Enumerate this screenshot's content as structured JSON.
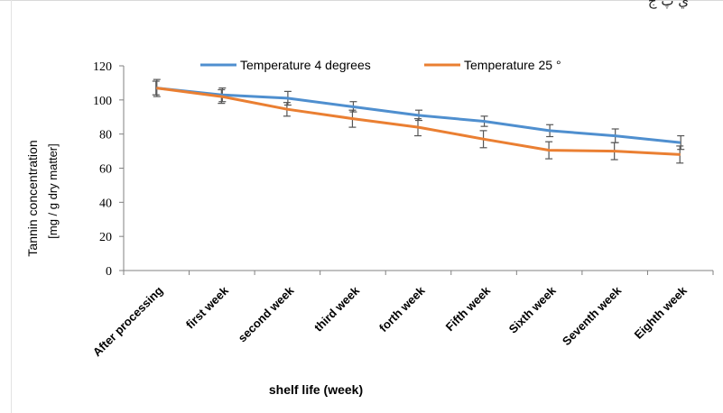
{
  "corner_text": "ي پ ج",
  "chart_data": {
    "type": "line",
    "title": "",
    "xlabel": "shelf life (week)",
    "ylabel": "Tannin concentration",
    "ylabel_units": "[mg / g dry matter]",
    "ylim": [
      0,
      120
    ],
    "yticks": [
      0,
      20,
      40,
      60,
      80,
      100,
      120
    ],
    "grid": false,
    "legend_position": "top",
    "categories": [
      "After processing",
      "first week",
      "second week",
      "third week",
      "forth week",
      "Fifth week",
      "Sixth week",
      "Seventh week",
      "Eighth week"
    ],
    "series": [
      {
        "name": "Temperature 4 degrees",
        "color": "#4f8fcf",
        "values": [
          107,
          103,
          101,
          96,
          91,
          87.5,
          82,
          79,
          75
        ],
        "errors": [
          5,
          4,
          4,
          3,
          3,
          3,
          3.5,
          4,
          4
        ]
      },
      {
        "name": "Temperature 25 °",
        "color": "#ea7f32",
        "values": [
          107,
          102,
          94.5,
          89,
          84,
          77,
          70.5,
          70,
          68
        ],
        "errors": [
          4,
          4,
          4,
          5,
          5,
          5,
          5,
          5,
          5
        ]
      }
    ]
  }
}
